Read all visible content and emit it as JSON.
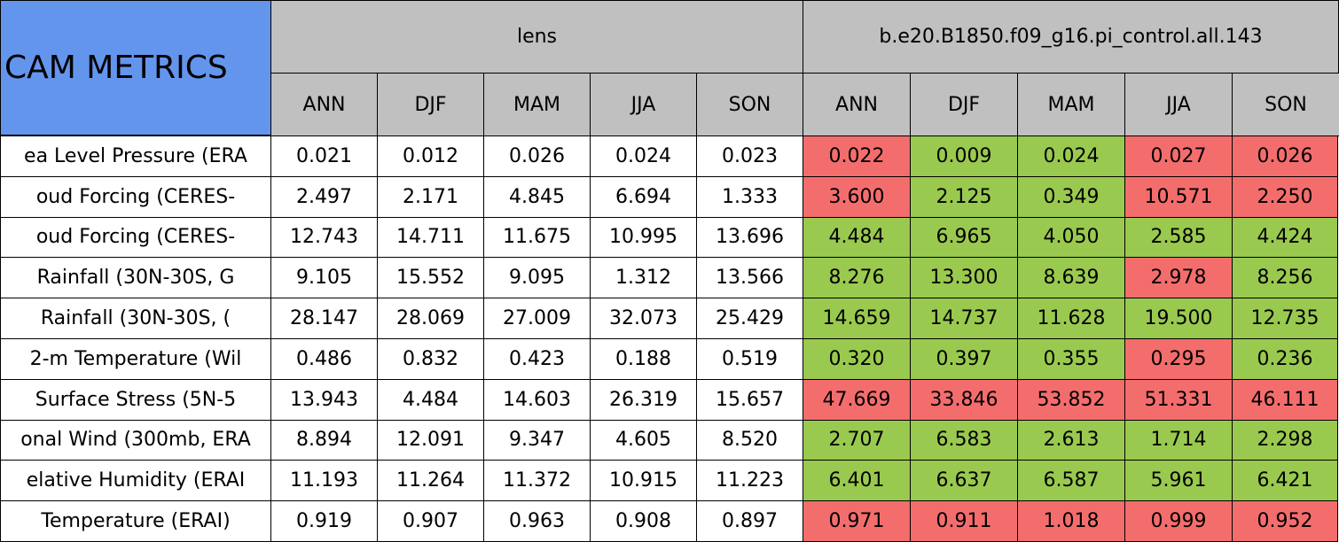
{
  "header": {
    "title": "CAM METRICS",
    "groups": [
      "lens",
      "b.e20.B1850.f09_g16.pi_control.all.143"
    ],
    "seasons": [
      "ANN",
      "DJF",
      "MAM",
      "JJA",
      "SON"
    ]
  },
  "rows": [
    {
      "label": "ea Level Pressure (ERA",
      "values": [
        "0.021",
        "0.012",
        "0.026",
        "0.024",
        "0.023",
        "0.022",
        "0.009",
        "0.024",
        "0.027",
        "0.026"
      ],
      "colors": [
        "#ffffff",
        "#ffffff",
        "#ffffff",
        "#ffffff",
        "#ffffff",
        "#f46d6d",
        "#9ac94f",
        "#9ac94f",
        "#f46d6d",
        "#f46d6d"
      ]
    },
    {
      "label": "oud Forcing (CERES-",
      "values": [
        "2.497",
        "2.171",
        "4.845",
        "6.694",
        "1.333",
        "3.600",
        "2.125",
        "0.349",
        "10.571",
        "2.250"
      ],
      "colors": [
        "#ffffff",
        "#ffffff",
        "#ffffff",
        "#ffffff",
        "#ffffff",
        "#f46d6d",
        "#9ac94f",
        "#9ac94f",
        "#f46d6d",
        "#f46d6d"
      ]
    },
    {
      "label": "oud Forcing (CERES-",
      "values": [
        "12.743",
        "14.711",
        "11.675",
        "10.995",
        "13.696",
        "4.484",
        "6.965",
        "4.050",
        "2.585",
        "4.424"
      ],
      "colors": [
        "#ffffff",
        "#ffffff",
        "#ffffff",
        "#ffffff",
        "#ffffff",
        "#9ac94f",
        "#9ac94f",
        "#9ac94f",
        "#9ac94f",
        "#9ac94f"
      ]
    },
    {
      "label": "Rainfall (30N-30S, G",
      "values": [
        "9.105",
        "15.552",
        "9.095",
        "1.312",
        "13.566",
        "8.276",
        "13.300",
        "8.639",
        "2.978",
        "8.256"
      ],
      "colors": [
        "#ffffff",
        "#ffffff",
        "#ffffff",
        "#ffffff",
        "#ffffff",
        "#9ac94f",
        "#9ac94f",
        "#9ac94f",
        "#f46d6d",
        "#9ac94f"
      ]
    },
    {
      "label": "Rainfall (30N-30S, (",
      "values": [
        "28.147",
        "28.069",
        "27.009",
        "32.073",
        "25.429",
        "14.659",
        "14.737",
        "11.628",
        "19.500",
        "12.735"
      ],
      "colors": [
        "#ffffff",
        "#ffffff",
        "#ffffff",
        "#ffffff",
        "#ffffff",
        "#9ac94f",
        "#9ac94f",
        "#9ac94f",
        "#9ac94f",
        "#9ac94f"
      ]
    },
    {
      "label": "2-m Temperature (Wil",
      "values": [
        "0.486",
        "0.832",
        "0.423",
        "0.188",
        "0.519",
        "0.320",
        "0.397",
        "0.355",
        "0.295",
        "0.236"
      ],
      "colors": [
        "#ffffff",
        "#ffffff",
        "#ffffff",
        "#ffffff",
        "#ffffff",
        "#9ac94f",
        "#9ac94f",
        "#9ac94f",
        "#f46d6d",
        "#9ac94f"
      ]
    },
    {
      "label": "Surface Stress (5N-5",
      "values": [
        "13.943",
        "4.484",
        "14.603",
        "26.319",
        "15.657",
        "47.669",
        "33.846",
        "53.852",
        "51.331",
        "46.111"
      ],
      "colors": [
        "#ffffff",
        "#ffffff",
        "#ffffff",
        "#ffffff",
        "#ffffff",
        "#f46d6d",
        "#f46d6d",
        "#f46d6d",
        "#f46d6d",
        "#f46d6d"
      ]
    },
    {
      "label": "onal Wind (300mb, ERA",
      "values": [
        "8.894",
        "12.091",
        "9.347",
        "4.605",
        "8.520",
        "2.707",
        "6.583",
        "2.613",
        "1.714",
        "2.298"
      ],
      "colors": [
        "#ffffff",
        "#ffffff",
        "#ffffff",
        "#ffffff",
        "#ffffff",
        "#9ac94f",
        "#9ac94f",
        "#9ac94f",
        "#9ac94f",
        "#9ac94f"
      ]
    },
    {
      "label": "elative Humidity (ERAI",
      "values": [
        "11.193",
        "11.264",
        "11.372",
        "10.915",
        "11.223",
        "6.401",
        "6.637",
        "6.587",
        "5.961",
        "6.421"
      ],
      "colors": [
        "#ffffff",
        "#ffffff",
        "#ffffff",
        "#ffffff",
        "#ffffff",
        "#9ac94f",
        "#9ac94f",
        "#9ac94f",
        "#9ac94f",
        "#9ac94f"
      ]
    },
    {
      "label": "Temperature (ERAI)",
      "values": [
        "0.919",
        "0.907",
        "0.963",
        "0.908",
        "0.897",
        "0.971",
        "0.911",
        "1.018",
        "0.999",
        "0.952"
      ],
      "colors": [
        "#ffffff",
        "#ffffff",
        "#ffffff",
        "#ffffff",
        "#ffffff",
        "#f46d6d",
        "#f46d6d",
        "#f46d6d",
        "#f46d6d",
        "#f46d6d"
      ]
    }
  ]
}
